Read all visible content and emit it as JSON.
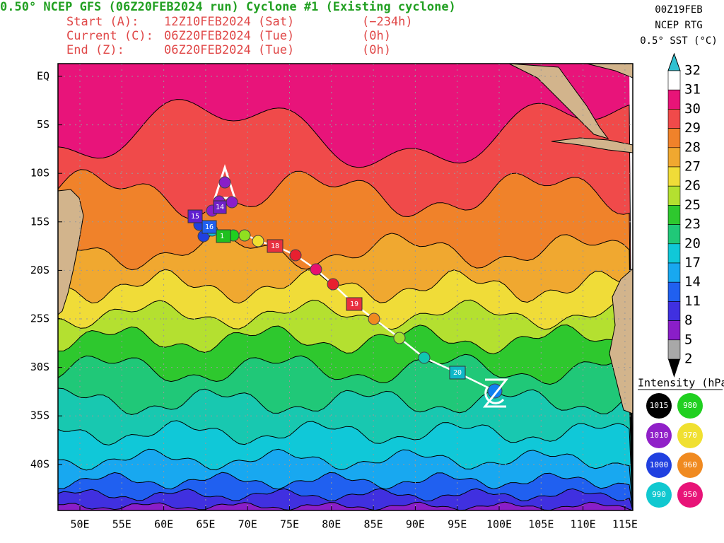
{
  "header": {
    "title": "0.50° NCEP GFS (06Z20FEB2024 run) Cyclone #1 (Existing cyclone)",
    "lines": [
      [
        "Start (A):",
        "12Z10FEB2024 (Sat)",
        "(−234h)"
      ],
      [
        "Current (C):",
        "06Z20FEB2024 (Tue)",
        "(0h)"
      ],
      [
        "End (Z):",
        "06Z20FEB2024 (Tue)",
        "(0h)"
      ]
    ]
  },
  "info": [
    "00Z19FEB",
    "NCEP RTG",
    "0.5° SST (°C)"
  ],
  "lat_labels": [
    "EQ",
    "5S",
    "10S",
    "15S",
    "20S",
    "25S",
    "30S",
    "35S",
    "40S"
  ],
  "lon_labels": [
    "50E",
    "55E",
    "60E",
    "65E",
    "70E",
    "75E",
    "80E",
    "85E",
    "90E",
    "95E",
    "100E",
    "105E",
    "110E",
    "115E"
  ],
  "colorbar": [
    "32",
    "31",
    "30",
    "29",
    "28",
    "27",
    "26",
    "25",
    "23",
    "20",
    "17",
    "14",
    "11",
    "8",
    "5",
    "2"
  ],
  "legend": {
    "title": "Intensity (hPa):",
    "items": [
      "1015",
      "980",
      "1010",
      "970",
      "1000",
      "960",
      "990",
      "950"
    ]
  },
  "track_labels": [
    "15",
    "16",
    "14",
    "1",
    "18",
    "19",
    "20"
  ]
}
